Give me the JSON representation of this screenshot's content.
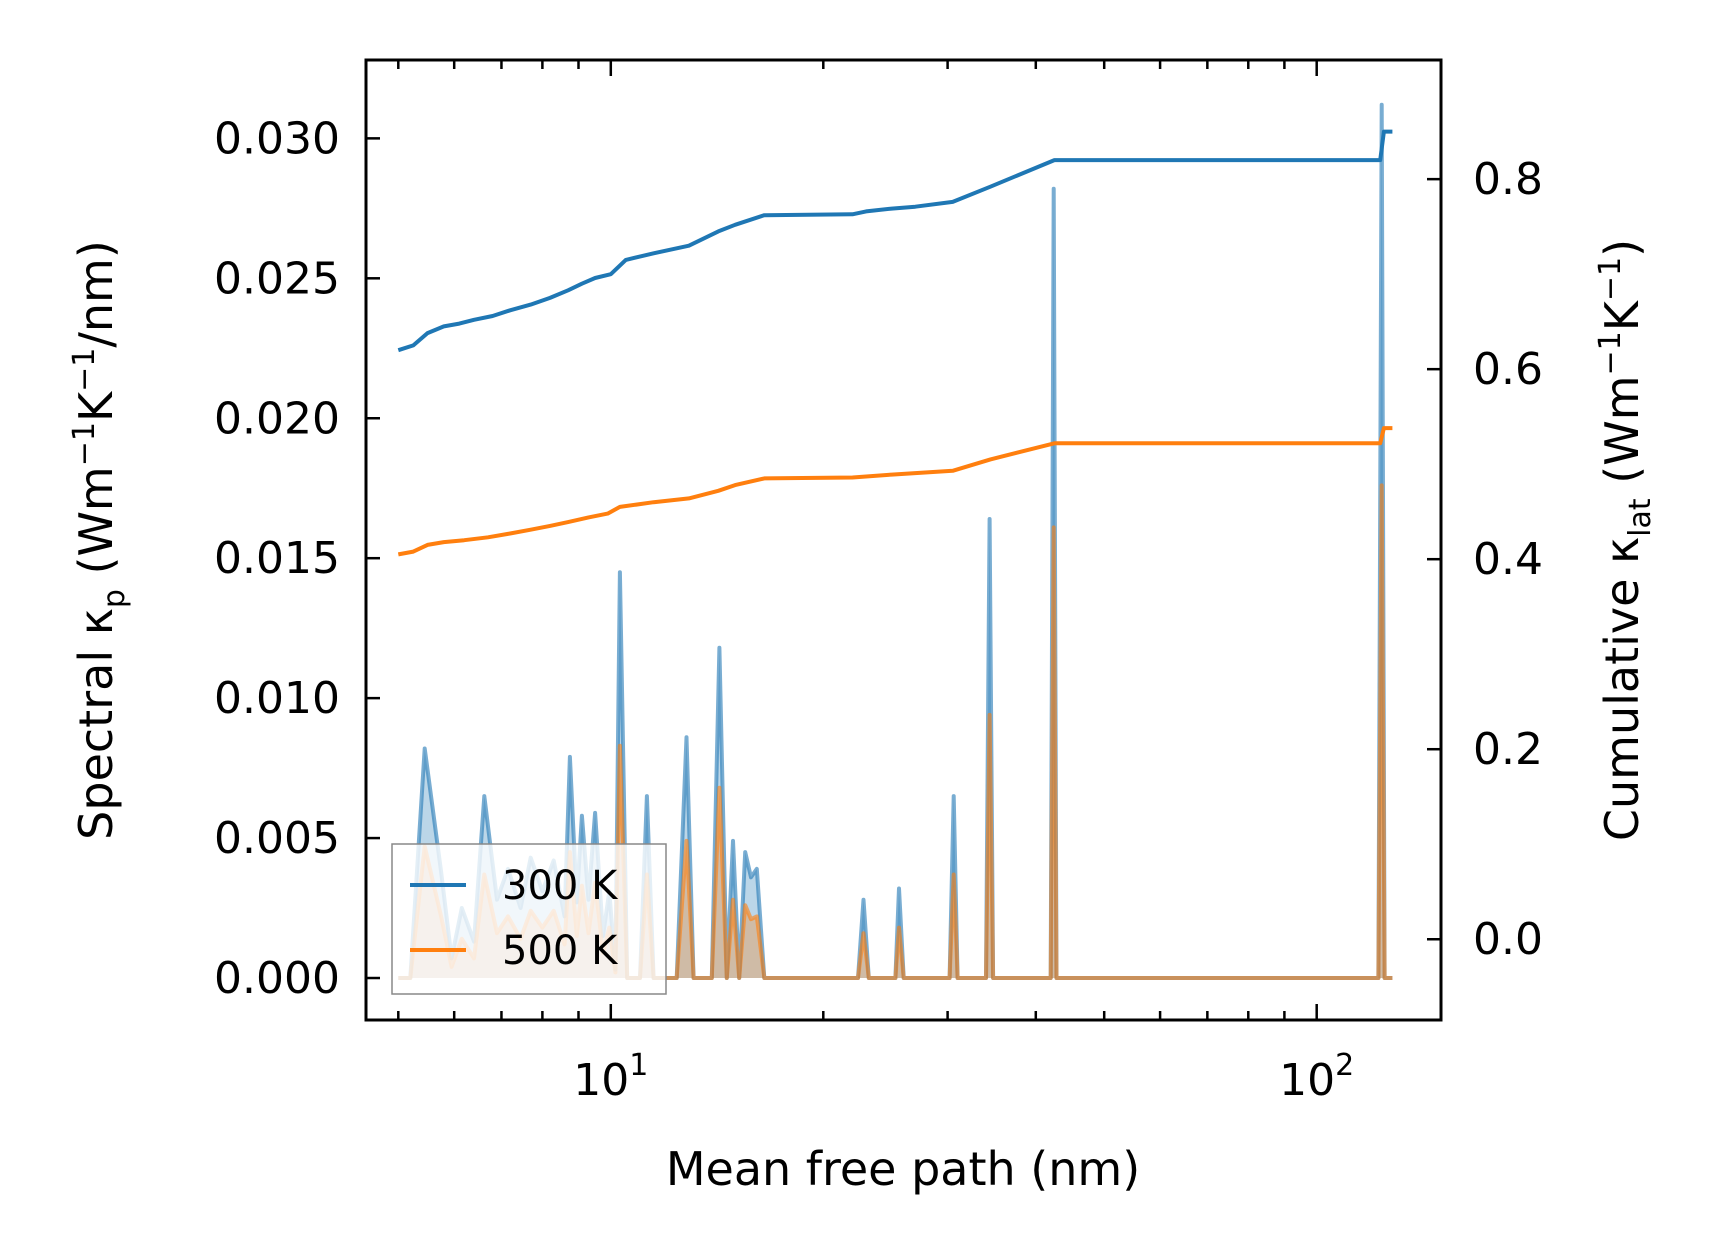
{
  "chart_data": {
    "type": "line",
    "title": "",
    "xlabel": "Mean free path (nm)",
    "ylabel_left": {
      "main": "Spectral κ",
      "sub": "p",
      "unit_open": " (Wm",
      "sup1": "−1",
      "mid": "K",
      "sup2": "−1",
      "unit_close": "/nm)"
    },
    "ylabel_right": {
      "main": "Cumulative κ",
      "sub": "lat",
      "unit_open": " (Wm",
      "sup1": "−1",
      "mid": "K",
      "sup2": "−1",
      "unit_close": ")"
    },
    "xscale": "log",
    "xlim": [
      4.5,
      150
    ],
    "x_tick_labels": [
      {
        "base": "10",
        "exp": "1",
        "value": 10
      },
      {
        "base": "10",
        "exp": "2",
        "value": 100
      }
    ],
    "ylim_left": [
      -0.0015,
      0.0328
    ],
    "ylim_right": [
      -0.085,
      0.9254
    ],
    "left_ticks": [
      "0.000",
      "0.005",
      "0.010",
      "0.015",
      "0.020",
      "0.025",
      "0.030"
    ],
    "right_ticks": [
      "0.0",
      "0.2",
      "0.4",
      "0.6",
      "0.8"
    ],
    "legend": {
      "position": "lower-left",
      "entries": [
        "300 K",
        "500 K"
      ]
    },
    "colors": {
      "300 K": "#1f77b4",
      "500 K": "#ff7f0e"
    },
    "series_cumulative": [
      {
        "name": "300 K",
        "axis": "right",
        "points": [
          [
            5.0,
            0.62
          ],
          [
            5.25,
            0.625
          ],
          [
            5.5,
            0.638
          ],
          [
            5.8,
            0.645
          ],
          [
            6.1,
            0.648
          ],
          [
            6.4,
            0.652
          ],
          [
            6.8,
            0.656
          ],
          [
            7.2,
            0.662
          ],
          [
            7.7,
            0.668
          ],
          [
            8.2,
            0.675
          ],
          [
            8.7,
            0.683
          ],
          [
            9.1,
            0.69
          ],
          [
            9.5,
            0.696
          ],
          [
            10.0,
            0.7
          ],
          [
            10.5,
            0.715
          ],
          [
            11.5,
            0.722
          ],
          [
            12.9,
            0.73
          ],
          [
            14.2,
            0.745
          ],
          [
            15.0,
            0.752
          ],
          [
            16.5,
            0.762
          ],
          [
            22.0,
            0.763
          ],
          [
            23.0,
            0.766
          ],
          [
            25.0,
            0.769
          ],
          [
            27.0,
            0.771
          ],
          [
            30.5,
            0.776
          ],
          [
            34.5,
            0.792
          ],
          [
            42.5,
            0.82
          ],
          [
            123.0,
            0.82
          ],
          [
            124.5,
            0.85
          ],
          [
            128.0,
            0.85
          ]
        ]
      },
      {
        "name": "500 K",
        "axis": "right",
        "points": [
          [
            5.0,
            0.405
          ],
          [
            5.25,
            0.408
          ],
          [
            5.5,
            0.415
          ],
          [
            5.8,
            0.418
          ],
          [
            6.2,
            0.42
          ],
          [
            6.7,
            0.423
          ],
          [
            7.2,
            0.427
          ],
          [
            7.7,
            0.431
          ],
          [
            8.2,
            0.435
          ],
          [
            8.7,
            0.439
          ],
          [
            9.3,
            0.444
          ],
          [
            9.9,
            0.448
          ],
          [
            10.3,
            0.455
          ],
          [
            11.5,
            0.46
          ],
          [
            12.9,
            0.464
          ],
          [
            14.2,
            0.472
          ],
          [
            15.0,
            0.478
          ],
          [
            16.5,
            0.485
          ],
          [
            22.0,
            0.486
          ],
          [
            25.0,
            0.489
          ],
          [
            30.5,
            0.493
          ],
          [
            34.5,
            0.505
          ],
          [
            42.5,
            0.522
          ],
          [
            123.0,
            0.522
          ],
          [
            124.5,
            0.538
          ],
          [
            128.0,
            0.538
          ]
        ]
      }
    ],
    "series_spectral": [
      {
        "name": "300 K",
        "axis": "left",
        "points": [
          [
            5.0,
            0.0
          ],
          [
            5.2,
            0.0
          ],
          [
            5.45,
            0.0082
          ],
          [
            5.75,
            0.0038
          ],
          [
            5.95,
            0.0007
          ],
          [
            6.15,
            0.0025
          ],
          [
            6.4,
            0.0013
          ],
          [
            6.62,
            0.0065
          ],
          [
            6.9,
            0.0028
          ],
          [
            7.15,
            0.0039
          ],
          [
            7.45,
            0.0025
          ],
          [
            7.7,
            0.0043
          ],
          [
            8.0,
            0.0031
          ],
          [
            8.3,
            0.0042
          ],
          [
            8.6,
            0.0022
          ],
          [
            8.75,
            0.0079
          ],
          [
            8.95,
            0.0027
          ],
          [
            9.1,
            0.0058
          ],
          [
            9.3,
            0.0028
          ],
          [
            9.5,
            0.0059
          ],
          [
            9.75,
            0.0015
          ],
          [
            9.95,
            0.0031
          ],
          [
            10.15,
            0.0003
          ],
          [
            10.3,
            0.0145
          ],
          [
            10.55,
            0.0
          ],
          [
            11.0,
            0.0
          ],
          [
            11.25,
            0.0065
          ],
          [
            11.5,
            0.0
          ],
          [
            12.4,
            0.0
          ],
          [
            12.8,
            0.0086
          ],
          [
            13.1,
            0.0
          ],
          [
            13.9,
            0.0
          ],
          [
            14.25,
            0.0118
          ],
          [
            14.6,
            0.0
          ],
          [
            14.9,
            0.0049
          ],
          [
            15.2,
            0.0
          ],
          [
            15.5,
            0.0045
          ],
          [
            15.8,
            0.0036
          ],
          [
            16.1,
            0.0039
          ],
          [
            16.5,
            0.0
          ],
          [
            22.4,
            0.0
          ],
          [
            22.8,
            0.0028
          ],
          [
            23.2,
            0.0
          ],
          [
            25.3,
            0.0
          ],
          [
            25.6,
            0.0032
          ],
          [
            26.0,
            0.0
          ],
          [
            30.2,
            0.0
          ],
          [
            30.6,
            0.0065
          ],
          [
            31.0,
            0.0
          ],
          [
            34.0,
            0.0
          ],
          [
            34.4,
            0.0164
          ],
          [
            34.8,
            0.0
          ],
          [
            42.0,
            0.0
          ],
          [
            42.4,
            0.0282
          ],
          [
            42.8,
            0.0
          ],
          [
            122.3,
            0.0
          ],
          [
            123.6,
            0.0312
          ],
          [
            124.8,
            0.0
          ],
          [
            128.0,
            0.0
          ]
        ]
      },
      {
        "name": "500 K",
        "axis": "left",
        "points": [
          [
            5.0,
            0.0
          ],
          [
            5.2,
            0.0
          ],
          [
            5.45,
            0.0047
          ],
          [
            5.75,
            0.0022
          ],
          [
            5.95,
            0.0004
          ],
          [
            6.15,
            0.0014
          ],
          [
            6.4,
            0.0007
          ],
          [
            6.62,
            0.0037
          ],
          [
            6.9,
            0.0016
          ],
          [
            7.15,
            0.0022
          ],
          [
            7.45,
            0.0014
          ],
          [
            7.7,
            0.0024
          ],
          [
            8.0,
            0.0018
          ],
          [
            8.3,
            0.0024
          ],
          [
            8.6,
            0.0012
          ],
          [
            8.75,
            0.0045
          ],
          [
            8.95,
            0.0015
          ],
          [
            9.1,
            0.0033
          ],
          [
            9.3,
            0.0016
          ],
          [
            9.5,
            0.0034
          ],
          [
            9.75,
            0.0009
          ],
          [
            9.95,
            0.0018
          ],
          [
            10.15,
            0.0002
          ],
          [
            10.3,
            0.0083
          ],
          [
            10.55,
            0.0
          ],
          [
            11.0,
            0.0
          ],
          [
            11.25,
            0.0037
          ],
          [
            11.5,
            0.0
          ],
          [
            12.4,
            0.0
          ],
          [
            12.8,
            0.0049
          ],
          [
            13.1,
            0.0
          ],
          [
            13.9,
            0.0
          ],
          [
            14.25,
            0.0068
          ],
          [
            14.6,
            0.0
          ],
          [
            14.9,
            0.0028
          ],
          [
            15.2,
            0.0
          ],
          [
            15.5,
            0.0026
          ],
          [
            15.8,
            0.0021
          ],
          [
            16.1,
            0.0022
          ],
          [
            16.5,
            0.0
          ],
          [
            22.4,
            0.0
          ],
          [
            22.8,
            0.0016
          ],
          [
            23.2,
            0.0
          ],
          [
            25.3,
            0.0
          ],
          [
            25.6,
            0.0018
          ],
          [
            26.0,
            0.0
          ],
          [
            30.2,
            0.0
          ],
          [
            30.6,
            0.0037
          ],
          [
            31.0,
            0.0
          ],
          [
            34.0,
            0.0
          ],
          [
            34.4,
            0.0094
          ],
          [
            34.8,
            0.0
          ],
          [
            42.0,
            0.0
          ],
          [
            42.4,
            0.0161
          ],
          [
            42.8,
            0.0
          ],
          [
            122.3,
            0.0
          ],
          [
            123.6,
            0.0176
          ],
          [
            124.8,
            0.0
          ],
          [
            128.0,
            0.0
          ]
        ]
      }
    ]
  }
}
